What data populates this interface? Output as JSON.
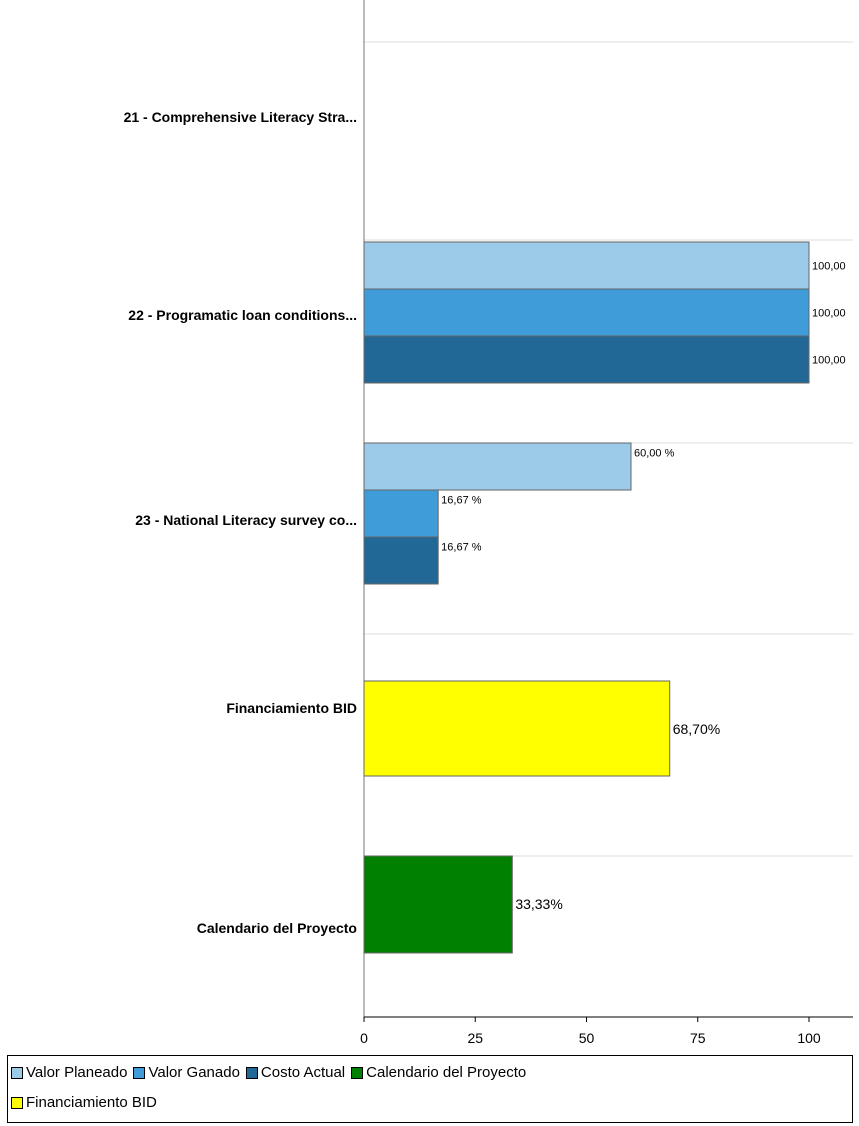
{
  "chart_data": {
    "type": "bar",
    "orientation": "horizontal",
    "title": "",
    "xlim": [
      0,
      110
    ],
    "xticks": [
      0,
      25,
      50,
      75,
      100
    ],
    "xtick_labels": [
      "0",
      "25",
      "50",
      "75",
      "100"
    ],
    "grid": true,
    "legend_position": "bottom",
    "categories": [
      {
        "label": "21 - Comprehensive Literacy Stra...",
        "bars": []
      },
      {
        "label": "22 - Programatic loan conditions...",
        "bars": [
          {
            "series": "Valor Planeado",
            "value": 100,
            "label": "100,00"
          },
          {
            "series": "Valor Ganado",
            "value": 100,
            "label": "100,00"
          },
          {
            "series": "Costo Actual",
            "value": 100,
            "label": "100,00"
          }
        ]
      },
      {
        "label": "23 - National Literacy survey co...",
        "bars": [
          {
            "series": "Valor Planeado",
            "value": 60,
            "label": "60,00 %"
          },
          {
            "series": "Valor Ganado",
            "value": 16.67,
            "label": "16,67 %"
          },
          {
            "series": "Costo Actual",
            "value": 16.67,
            "label": "16,67 %"
          }
        ]
      },
      {
        "label": "Financiamiento BID",
        "bars": [
          {
            "series": "Financiamiento BID",
            "value": 68.7,
            "label": "68,70%"
          }
        ]
      },
      {
        "label": "Calendario del Proyecto",
        "bars": [
          {
            "series": "Calendario del Proyecto",
            "value": 33.33,
            "label": "33,33%"
          }
        ]
      }
    ],
    "series": [
      {
        "name": "Valor Planeado",
        "color": "#9ccbea"
      },
      {
        "name": "Valor Ganado",
        "color": "#3f9cd8"
      },
      {
        "name": "Costo Actual",
        "color": "#226896"
      },
      {
        "name": "Calendario del Proyecto",
        "color": "#008000"
      },
      {
        "name": "Financiamiento BID",
        "color": "#ffff00"
      }
    ]
  },
  "legend": {
    "row1": [
      "Valor Planeado",
      "Valor Ganado",
      "Costo Actual",
      "Calendario del Proyecto"
    ],
    "row2": [
      "Financiamiento BID"
    ]
  },
  "colors": {
    "Valor Planeado": "#9ccbea",
    "Valor Ganado": "#3f9cd8",
    "Costo Actual": "#226896",
    "Calendario del Proyecto": "#008000",
    "Financiamiento BID": "#ffff00"
  }
}
